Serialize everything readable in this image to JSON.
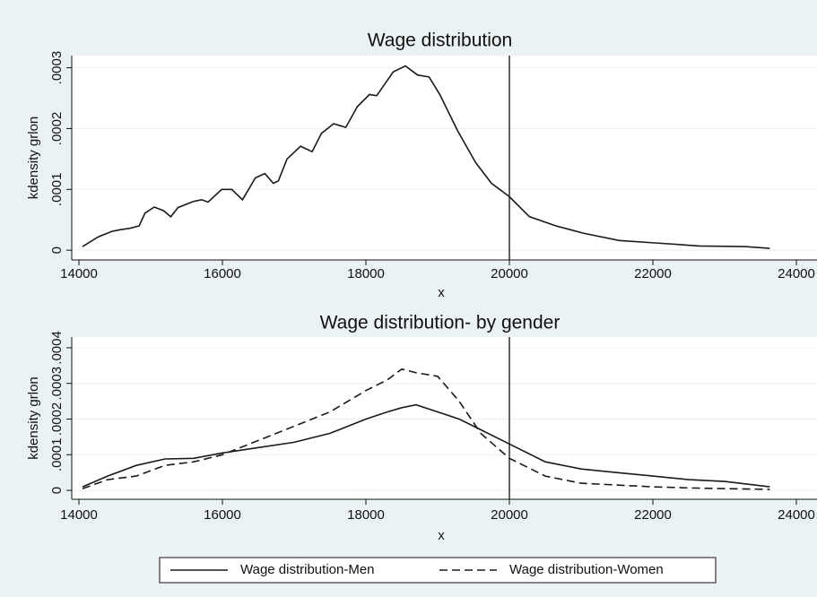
{
  "chart_data": [
    {
      "type": "line",
      "title": "Wage distribution",
      "xlabel": "x",
      "ylabel": "kdensity grlon",
      "x": [
        14050,
        14270,
        14460,
        14590,
        14710,
        14840,
        14920,
        15050,
        15180,
        15280,
        15380,
        15590,
        15710,
        15800,
        15990,
        16130,
        16280,
        16460,
        16590,
        16710,
        16780,
        16900,
        17090,
        17250,
        17380,
        17550,
        17720,
        17880,
        18050,
        18150,
        18380,
        18550,
        18630,
        18720,
        18880,
        19030,
        19280,
        19530,
        19750,
        20000,
        20280,
        20650,
        21030,
        21530,
        22030,
        22650,
        23280,
        23630
      ],
      "values": [
        6e-06,
        2.2e-05,
        3.1e-05,
        3.4e-05,
        3.6e-05,
        4e-05,
        6.1e-05,
        7.1e-05,
        6.5e-05,
        5.5e-05,
        7e-05,
        8e-05,
        8.3e-05,
        7.9e-05,
        0.0001,
        0.0001,
        8.3e-05,
        0.000119,
        0.000126,
        0.00011,
        0.000114,
        0.00015,
        0.000171,
        0.000162,
        0.000192,
        0.000208,
        0.000202,
        0.000236,
        0.000256,
        0.000254,
        0.000293,
        0.000303,
        0.000296,
        0.000288,
        0.000285,
        0.000256,
        0.000196,
        0.000144,
        0.00011,
        8.8e-05,
        5.5e-05,
        4e-05,
        2.8e-05,
        1.6e-05,
        1.2e-05,
        7e-06,
        6e-06,
        3e-06
      ],
      "color": "#1a1a1a",
      "xlim": [
        14000,
        24000
      ],
      "ylim": [
        -1.6e-05,
        0.00032
      ],
      "xticks": [
        14000,
        16000,
        18000,
        20000,
        22000,
        24000
      ],
      "yticks": [
        0,
        {
          "value": 0.0001,
          "label": ".0001"
        },
        {
          "value": 0.0002,
          "label": ".0002"
        },
        {
          "value": 0.0003,
          "label": ".0003"
        }
      ],
      "xline": 20000,
      "grid": true
    },
    {
      "type": "line",
      "title": "Wage distribution- by gender",
      "xlabel": "x",
      "ylabel": "kdensity grlon",
      "x": [
        14050,
        14400,
        14800,
        15200,
        15600,
        16000,
        16500,
        17000,
        17500,
        18000,
        18300,
        18500,
        18700,
        19000,
        19300,
        19600,
        20000,
        20500,
        21000,
        21500,
        22000,
        22500,
        23000,
        23630
      ],
      "series": [
        {
          "name": "Wage distribution-Men",
          "color": "#1a1a1a",
          "linestyle": "solid",
          "values": [
            1e-05,
            4e-05,
            7e-05,
            8.8e-05,
            9e-05,
            0.000105,
            0.00012,
            0.000135,
            0.00016,
            0.0002,
            0.00022,
            0.000232,
            0.00024,
            0.00022,
            0.0002,
            0.00017,
            0.00013,
            8e-05,
            6e-05,
            5e-05,
            4e-05,
            3e-05,
            2.5e-05,
            1e-05
          ]
        },
        {
          "name": "Wage distribution-Women",
          "color": "#1a1a1a",
          "linestyle": "dashed",
          "values": [
            5e-06,
            3e-05,
            4e-05,
            7e-05,
            8e-05,
            0.0001,
            0.00014,
            0.00018,
            0.00022,
            0.00028,
            0.00031,
            0.00034,
            0.00033,
            0.00032,
            0.00025,
            0.00016,
            9e-05,
            4e-05,
            2e-05,
            1.5e-05,
            1e-05,
            7e-06,
            5e-06,
            3e-06
          ]
        }
      ],
      "xlim": [
        14000,
        24000
      ],
      "ylim": [
        -2.5e-05,
        0.00043
      ],
      "xticks": [
        14000,
        16000,
        18000,
        20000,
        22000,
        24000
      ],
      "yticks": [
        0,
        {
          "value": 0.0001,
          "label": ".0001"
        },
        {
          "value": 0.0002,
          "label": ".0002"
        },
        {
          "value": 0.0003,
          "label": ".0003"
        },
        {
          "value": 0.0004,
          "label": ".0004"
        }
      ],
      "xline": 20000,
      "grid": true,
      "legend": "bottom"
    }
  ]
}
